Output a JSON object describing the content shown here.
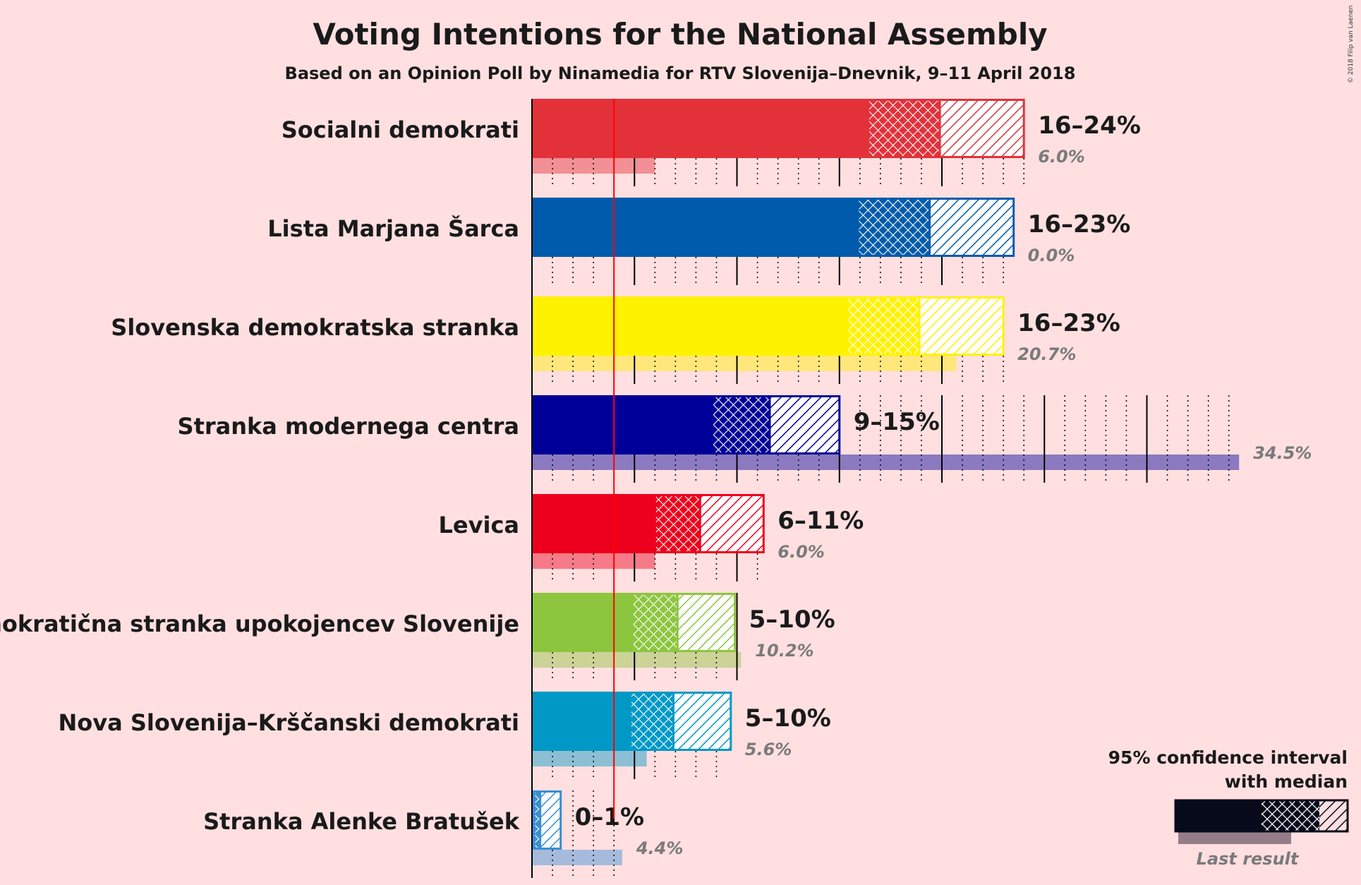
{
  "chart_data": {
    "type": "bar",
    "title": "Voting Intentions for the National Assembly",
    "subtitle": "Based on an Opinion Poll by Ninamedia for RTV Slovenija–Dnevnik, 9–11 April 2018",
    "copyright": "© 2018 Filip van Laenen",
    "threshold": 4,
    "parties": [
      {
        "name": "Socialni demokrati",
        "color": "#e3313a",
        "low": 16,
        "high": 24,
        "ci80_low": 16.4,
        "median": 19.9,
        "ci80_high": 22.9,
        "ci95_high": 24,
        "range_label": "16–24%",
        "last": 6.0,
        "last_label": "6.0%"
      },
      {
        "name": "Lista Marjana Šarca",
        "color": "#005bac",
        "low": 16,
        "high": 23,
        "ci80_low": 15.9,
        "median": 19.4,
        "ci80_high": 22.5,
        "ci95_high": 23.5,
        "range_label": "16–23%",
        "last": 0.0,
        "last_label": "0.0%"
      },
      {
        "name": "Slovenska demokratska stranka",
        "color": "#fff200",
        "low": 16,
        "high": 23,
        "ci80_low": 15.4,
        "median": 18.9,
        "ci80_high": 22.0,
        "ci95_high": 23.0,
        "range_label": "16–23%",
        "last": 20.7,
        "last_label": "20.7%"
      },
      {
        "name": "Stranka modernega centra",
        "color": "#000099",
        "low": 9,
        "high": 15,
        "ci80_low": 8.8,
        "median": 11.6,
        "ci80_high": 14.3,
        "ci95_high": 15.0,
        "range_label": "9–15%",
        "last": 34.5,
        "last_label": "34.5%"
      },
      {
        "name": "Levica",
        "color": "#ec001d",
        "low": 6,
        "high": 11,
        "ci80_low": 6.0,
        "median": 8.2,
        "ci80_high": 10.8,
        "ci95_high": 11.3,
        "range_label": "6–11%",
        "last": 6.0,
        "last_label": "6.0%"
      },
      {
        "name": "Demokratična stranka upokojencev Slovenije",
        "color": "#8cc63f",
        "low": 5,
        "high": 10,
        "ci80_low": 4.9,
        "median": 7.1,
        "ci80_high": 9.4,
        "ci95_high": 9.9,
        "range_label": "5–10%",
        "last": 10.2,
        "last_label": "10.2%"
      },
      {
        "name": "Nova Slovenija–Krščanski demokrati",
        "color": "#0099c6",
        "low": 5,
        "high": 10,
        "ci80_low": 4.8,
        "median": 6.9,
        "ci80_high": 9.2,
        "ci95_high": 9.7,
        "range_label": "5–10%",
        "last": 5.6,
        "last_label": "5.6%"
      },
      {
        "name": "Stranka Alenke Bratušek",
        "color": "#3a8ed4",
        "low": 0,
        "high": 1,
        "ci80_low": 0.1,
        "median": 0.4,
        "ci80_high": 1.2,
        "ci95_high": 1.4,
        "range_label": "0–1%",
        "last": 4.4,
        "last_label": "4.4%"
      }
    ],
    "legend": {
      "title_line1": "95% confidence interval",
      "title_line2": "with median",
      "last_label": "Last result"
    }
  }
}
